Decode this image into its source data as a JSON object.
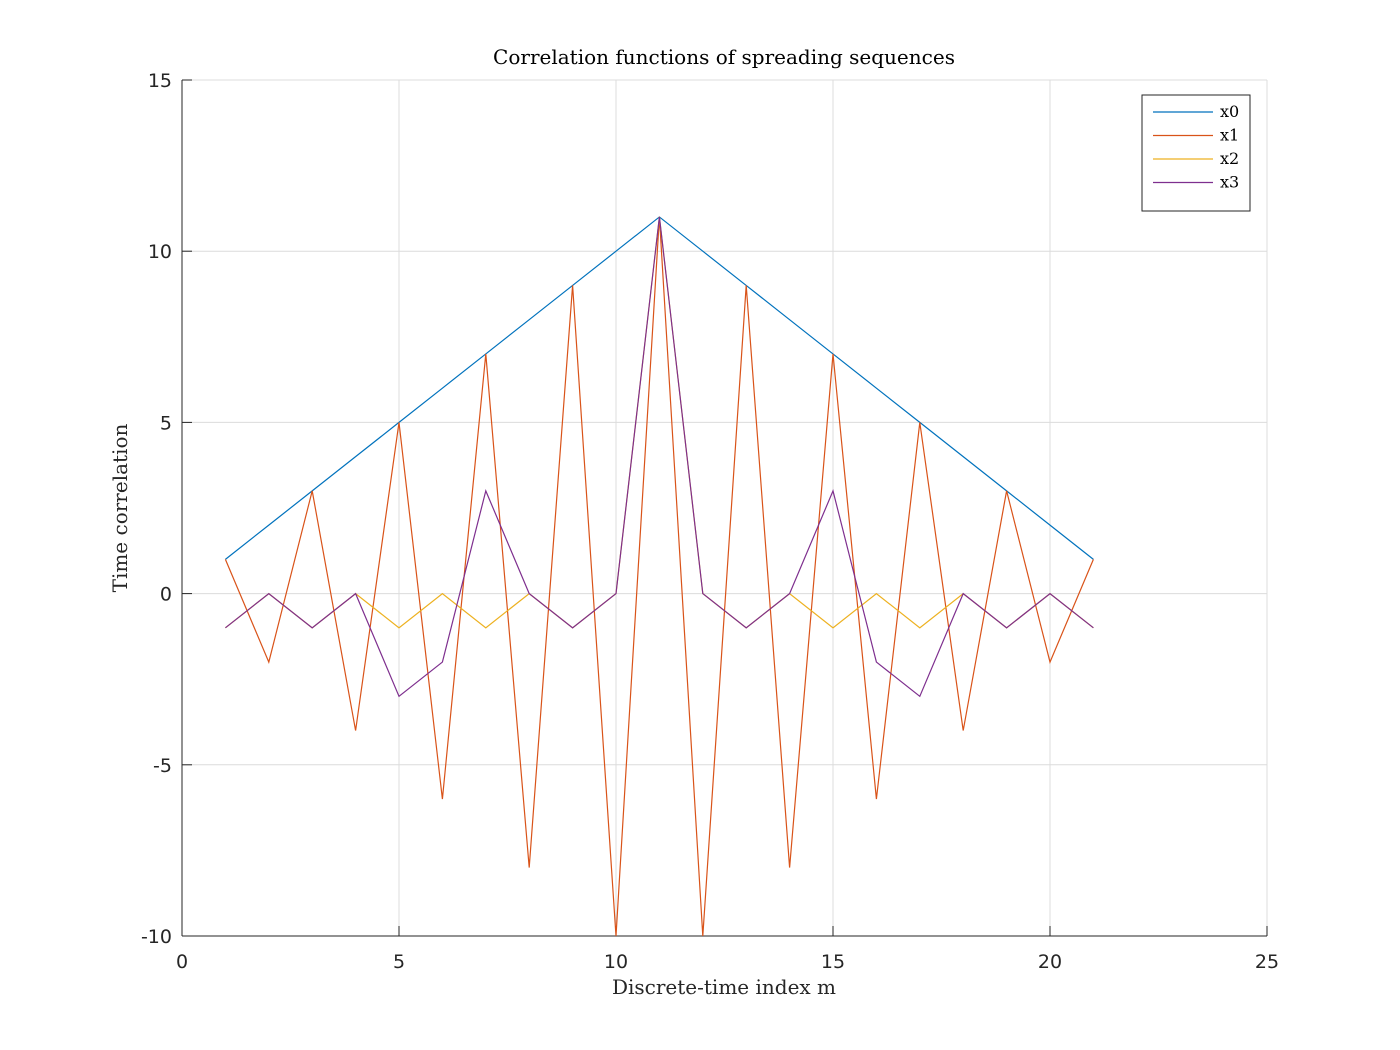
{
  "chart_data": {
    "type": "line",
    "title": "Correlation functions of spreading sequences",
    "xlabel": "Discrete-time index m",
    "ylabel": "Time correlation",
    "xlim": [
      0,
      25
    ],
    "ylim": [
      -10,
      15
    ],
    "xticks": [
      0,
      5,
      10,
      15,
      20,
      25
    ],
    "yticks": [
      -10,
      -5,
      0,
      5,
      10,
      15
    ],
    "grid": true,
    "legend_position": "top-right",
    "x": [
      1,
      2,
      3,
      4,
      5,
      6,
      7,
      8,
      9,
      10,
      11,
      12,
      13,
      14,
      15,
      16,
      17,
      18,
      19,
      20,
      21
    ],
    "series": [
      {
        "name": "x0",
        "color": "#0072BD",
        "values": [
          1,
          2,
          3,
          4,
          5,
          6,
          7,
          8,
          9,
          10,
          11,
          10,
          9,
          8,
          7,
          6,
          5,
          4,
          3,
          2,
          1
        ]
      },
      {
        "name": "x1",
        "color": "#D95319",
        "values": [
          1,
          -2,
          3,
          -4,
          5,
          -6,
          7,
          -8,
          9,
          -10,
          11,
          -10,
          9,
          -8,
          7,
          -6,
          5,
          -4,
          3,
          -2,
          1
        ]
      },
      {
        "name": "x2",
        "color": "#EDB120",
        "values": [
          -1,
          0,
          -1,
          0,
          -1,
          0,
          -1,
          0,
          -1,
          0,
          11,
          0,
          -1,
          0,
          -1,
          0,
          -1,
          0,
          -1,
          0,
          -1
        ]
      },
      {
        "name": "x3",
        "color": "#7E2F8E",
        "values": [
          -1,
          0,
          -1,
          0,
          -3,
          -2,
          3,
          0,
          -1,
          0,
          11,
          0,
          -1,
          0,
          3,
          -2,
          -3,
          0,
          -1,
          0,
          -1
        ]
      }
    ]
  }
}
